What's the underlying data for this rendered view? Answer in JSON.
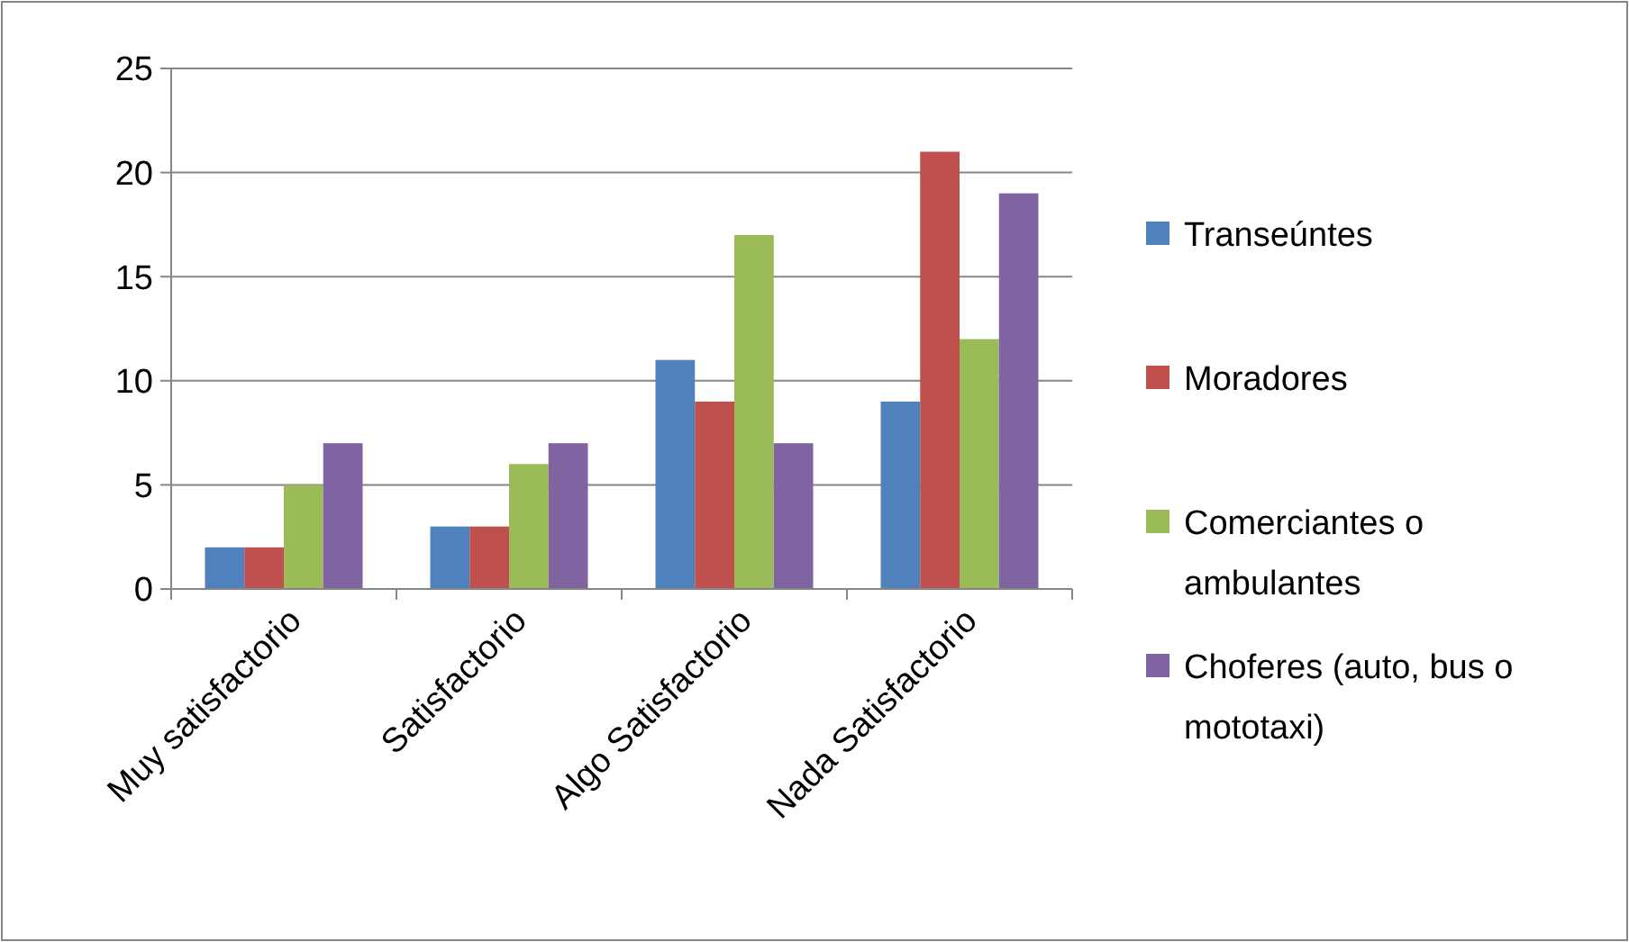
{
  "chart_data": {
    "type": "bar",
    "categories": [
      "Muy satisfactorio",
      "Satisfactorio",
      "Algo Satisfactorio",
      "Nada Satisfactorio"
    ],
    "series": [
      {
        "name": "Transeúntes",
        "color": "#4f81bd",
        "values": [
          2,
          3,
          11,
          9
        ]
      },
      {
        "name": "Moradores",
        "color": "#c0504d",
        "values": [
          2,
          3,
          9,
          21
        ]
      },
      {
        "name": "Comerciantes o ambulantes",
        "color": "#9bbb59",
        "values": [
          5,
          6,
          17,
          12
        ]
      },
      {
        "name": "Choferes (auto, bus o mototaxi)",
        "color": "#8064a2",
        "values": [
          7,
          7,
          7,
          19
        ]
      }
    ],
    "ylim": [
      0,
      25
    ],
    "yticks": [
      0,
      5,
      10,
      15,
      20,
      25
    ],
    "grid": "y",
    "legend": "right"
  }
}
